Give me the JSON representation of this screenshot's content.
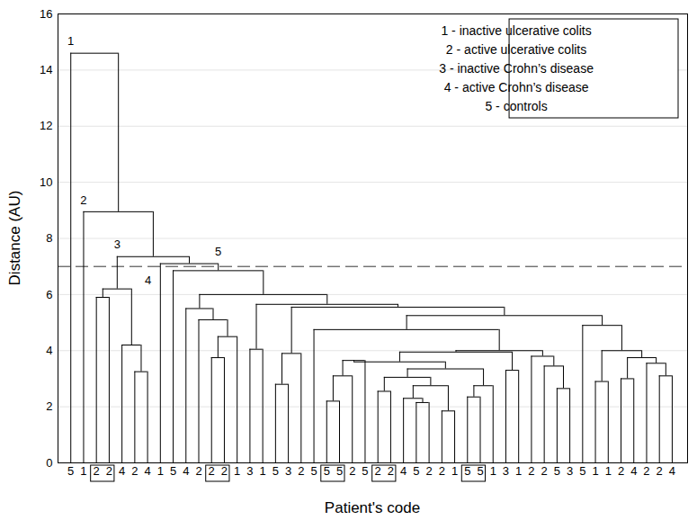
{
  "chart_data": {
    "type": "dendrogram",
    "x_label": "Patient's code",
    "y_label": "Distance (AU)",
    "categories": [
      "5",
      "1",
      "2",
      "2",
      "4",
      "2",
      "4",
      "1",
      "5",
      "4",
      "2",
      "2",
      "2",
      "1",
      "3",
      "1",
      "5",
      "3",
      "2",
      "5",
      "5",
      "5",
      "2",
      "5",
      "2",
      "2",
      "4",
      "5",
      "2",
      "2",
      "1",
      "5",
      "5",
      "1",
      "3",
      "1",
      "2",
      "2",
      "5",
      "3",
      "5",
      "1",
      "1",
      "2",
      "4",
      "2",
      "2",
      "4"
    ],
    "merges": [
      {
        "left": 2,
        "right": 3,
        "height": 5.9
      },
      {
        "left": 5,
        "right": 6,
        "height": 3.25
      },
      {
        "left": 4,
        "right": 49,
        "height": 4.2
      },
      {
        "left": 48,
        "right": 50,
        "height": 6.2
      },
      {
        "left": 11,
        "right": 12,
        "height": 3.75
      },
      {
        "left": 52,
        "right": 13,
        "height": 4.5
      },
      {
        "left": 10,
        "right": 53,
        "height": 5.1
      },
      {
        "left": 9,
        "right": 54,
        "height": 5.5
      },
      {
        "left": 14,
        "right": 15,
        "height": 4.05
      },
      {
        "left": 16,
        "right": 17,
        "height": 2.8
      },
      {
        "left": 57,
        "right": 18,
        "height": 3.9
      },
      {
        "left": 20,
        "right": 21,
        "height": 2.2
      },
      {
        "left": 59,
        "right": 22,
        "height": 3.1
      },
      {
        "left": 60,
        "right": 23,
        "height": 3.65
      },
      {
        "left": 27,
        "right": 28,
        "height": 2.15
      },
      {
        "left": 26,
        "right": 62,
        "height": 2.3
      },
      {
        "left": 29,
        "right": 30,
        "height": 1.85
      },
      {
        "left": 63,
        "right": 64,
        "height": 2.75
      },
      {
        "left": 24,
        "right": 25,
        "height": 2.55
      },
      {
        "left": 66,
        "right": 65,
        "height": 3.05
      },
      {
        "left": 31,
        "right": 32,
        "height": 2.35
      },
      {
        "left": 68,
        "right": 33,
        "height": 2.75
      },
      {
        "left": 67,
        "right": 69,
        "height": 3.35
      },
      {
        "left": 61,
        "right": 70,
        "height": 3.6
      },
      {
        "left": 34,
        "right": 35,
        "height": 3.3
      },
      {
        "left": 71,
        "right": 72,
        "height": 3.95
      },
      {
        "left": 38,
        "right": 39,
        "height": 2.65
      },
      {
        "left": 37,
        "right": 74,
        "height": 3.45
      },
      {
        "left": 36,
        "right": 75,
        "height": 3.8
      },
      {
        "left": 73,
        "right": 76,
        "height": 4.0
      },
      {
        "left": 19,
        "right": 77,
        "height": 4.75
      },
      {
        "left": 41,
        "right": 42,
        "height": 2.9
      },
      {
        "left": 43,
        "right": 44,
        "height": 3.0
      },
      {
        "left": 46,
        "right": 47,
        "height": 3.1
      },
      {
        "left": 45,
        "right": 81,
        "height": 3.55
      },
      {
        "left": 80,
        "right": 82,
        "height": 3.75
      },
      {
        "left": 79,
        "right": 83,
        "height": 4.0
      },
      {
        "left": 40,
        "right": 84,
        "height": 4.9
      },
      {
        "left": 78,
        "right": 85,
        "height": 5.25
      },
      {
        "left": 58,
        "right": 86,
        "height": 5.55
      },
      {
        "left": 56,
        "right": 87,
        "height": 5.65
      },
      {
        "left": 55,
        "right": 88,
        "height": 6.0
      },
      {
        "left": 8,
        "right": 89,
        "height": 6.85
      },
      {
        "left": 7,
        "right": 90,
        "height": 7.1
      },
      {
        "left": 51,
        "right": 91,
        "height": 7.35
      },
      {
        "left": 1,
        "right": 92,
        "height": 8.95
      },
      {
        "left": 0,
        "right": 93,
        "height": 14.6
      }
    ],
    "cut_height": 7,
    "clusters": [
      {
        "label": "1",
        "node": 0
      },
      {
        "label": "2",
        "node": 1
      },
      {
        "label": "3",
        "node": 51
      },
      {
        "label": "4",
        "node": 7
      },
      {
        "label": "5",
        "node": 90
      }
    ],
    "boxed_pairs": [
      [
        2,
        3
      ],
      [
        11,
        12
      ],
      [
        20,
        21
      ],
      [
        24,
        25
      ],
      [
        31,
        32
      ]
    ],
    "legend": "top-right",
    "legend_entries": [
      "1 - inactive ulcerative colits",
      "2 - active ulcerative colits",
      "3 - inactive Crohn’s disease",
      "4 - active Crohn’s disease",
      "5 - controls"
    ],
    "ylim": [
      0,
      16
    ],
    "yticks": [
      0,
      2,
      4,
      6,
      8,
      10,
      12,
      14,
      16
    ],
    "grid": true
  }
}
